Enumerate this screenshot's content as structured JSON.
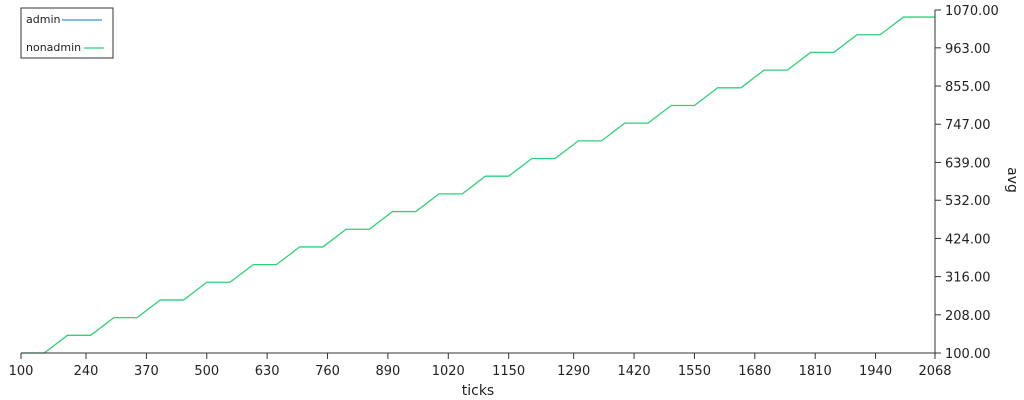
{
  "chart_data": {
    "type": "line",
    "xlabel": "ticks",
    "ylabel": "avg",
    "y_axis_side": "right",
    "legend_position": "top-left",
    "grid": false,
    "xlim": [
      100,
      2068
    ],
    "ylim": [
      100,
      1070
    ],
    "x_ticks": [
      100,
      240,
      370,
      500,
      630,
      760,
      890,
      1020,
      1150,
      1290,
      1420,
      1550,
      1680,
      1810,
      1940,
      2068
    ],
    "x_tick_labels": [
      "100",
      "240",
      "370",
      "500",
      "630",
      "760",
      "890",
      "1020",
      "1150",
      "1290",
      "1420",
      "1550",
      "1680",
      "1810",
      "1940",
      "2068"
    ],
    "y_ticks": [
      100,
      208,
      316,
      424,
      532,
      639,
      747,
      855,
      963,
      1070
    ],
    "y_tick_labels": [
      "100.00",
      "208.00",
      "316.00",
      "424.00",
      "532.00",
      "639.00",
      "747.00",
      "855.00",
      "963.00",
      "1070.00"
    ],
    "series": [
      {
        "name": "admin",
        "color": "#3a8fd0",
        "x": [],
        "y": []
      },
      {
        "name": "nonadmin",
        "color": "#2ed17a",
        "x": [
          100,
          150,
          200,
          250,
          300,
          350,
          400,
          450,
          500,
          550,
          600,
          650,
          700,
          750,
          800,
          850,
          900,
          950,
          1000,
          1050,
          1100,
          1150,
          1200,
          1250,
          1300,
          1350,
          1400,
          1450,
          1500,
          1550,
          1600,
          1650,
          1700,
          1750,
          1800,
          1850,
          1900,
          1950,
          2000,
          2050,
          2068
        ],
        "y": [
          100,
          100,
          150,
          150,
          200,
          200,
          250,
          250,
          300,
          300,
          350,
          350,
          400,
          400,
          450,
          450,
          500,
          500,
          550,
          550,
          600,
          600,
          650,
          650,
          700,
          700,
          750,
          750,
          800,
          800,
          850,
          850,
          900,
          900,
          950,
          950,
          1000,
          1000,
          1050,
          1050,
          1050
        ]
      }
    ]
  }
}
